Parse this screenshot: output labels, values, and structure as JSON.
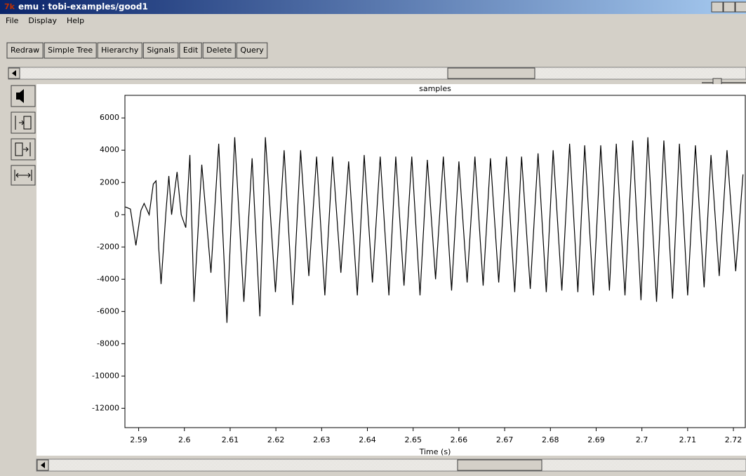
{
  "window": {
    "title": "emu : tobi-examples/good1"
  },
  "menu": [
    "File",
    "Display",
    "Help"
  ],
  "toolbar": [
    "Redraw",
    "Simple Tree",
    "Hierarchy",
    "Signals",
    "Edit",
    "Delete",
    "Query"
  ],
  "chart_data": {
    "type": "line",
    "title": "samples",
    "x_label": "Time (s)",
    "color": "#000000",
    "x": [
      2.5871,
      2.5882,
      2.5894,
      2.5905,
      2.5912,
      2.5923,
      2.5932,
      2.5938,
      2.5944,
      2.5949,
      2.596,
      2.5966,
      2.5972,
      2.5984,
      2.5993,
      2.6003,
      2.6012,
      2.6021,
      2.6038,
      2.6058,
      2.6075,
      2.6093,
      2.611,
      2.613,
      2.6148,
      2.6165,
      2.6177,
      2.6199,
      2.6218,
      2.6237,
      2.6254,
      2.6272,
      2.6289,
      2.6307,
      2.6324,
      2.6342,
      2.6359,
      2.6378,
      2.6393,
      2.6411,
      2.6428,
      2.6447,
      2.6462,
      2.648,
      2.6497,
      2.6515,
      2.6531,
      2.6549,
      2.6566,
      2.6584,
      2.66,
      2.6618,
      2.6635,
      2.6653,
      2.6669,
      2.6687,
      2.6704,
      2.6722,
      2.6737,
      2.6756,
      2.6773,
      2.6791,
      2.6806,
      2.6825,
      2.6842,
      2.686,
      2.6875,
      2.6894,
      2.691,
      2.6929,
      2.6944,
      2.6963,
      2.698,
      2.6998,
      2.7013,
      2.7032,
      2.7048,
      2.7067,
      2.7082,
      2.71,
      2.7117,
      2.7136,
      2.7151,
      2.7169,
      2.7186,
      2.7205,
      2.7221
    ],
    "values": [
      480,
      350,
      -1900,
      260,
      700,
      0,
      1900,
      2100,
      -2100,
      -4300,
      300,
      2400,
      0,
      2650,
      0,
      -800,
      3700,
      -5400,
      3100,
      -3600,
      4400,
      -6700,
      4800,
      -5400,
      3500,
      -6300,
      4800,
      -4800,
      4000,
      -5600,
      4000,
      -3800,
      3600,
      -5000,
      3600,
      -3600,
      3300,
      -5000,
      3700,
      -4200,
      3600,
      -5000,
      3600,
      -4400,
      3600,
      -5000,
      3400,
      -4000,
      3600,
      -4700,
      3300,
      -4200,
      3600,
      -4400,
      3500,
      -4200,
      3600,
      -4800,
      3600,
      -4600,
      3800,
      -4800,
      4000,
      -4700,
      4400,
      -4800,
      4300,
      -5000,
      4300,
      -4700,
      4400,
      -5000,
      4600,
      -5300,
      4800,
      -5400,
      4600,
      -5200,
      4400,
      -5000,
      4300,
      -4500,
      3700,
      -3800,
      4000,
      -3500,
      2500
    ],
    "xlim": [
      2.587,
      2.7226
    ],
    "ylim": [
      -13200,
      7400
    ],
    "xticks": [
      2.59,
      2.6,
      2.61,
      2.62,
      2.63,
      2.64,
      2.65,
      2.66,
      2.67,
      2.68,
      2.69,
      2.7,
      2.71,
      2.72
    ],
    "yticks": [
      -12000,
      -10000,
      -8000,
      -6000,
      -4000,
      -2000,
      0,
      2000,
      4000,
      6000
    ]
  }
}
